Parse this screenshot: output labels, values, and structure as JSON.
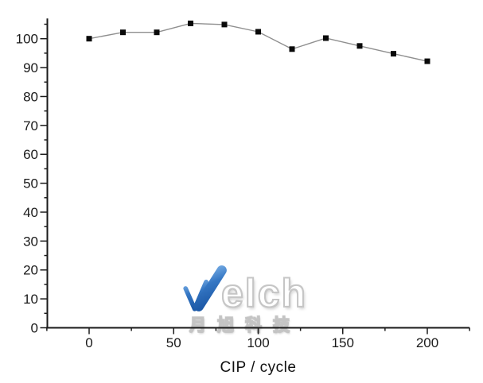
{
  "chart_data": {
    "type": "line",
    "title": "",
    "xlabel": "CIP / cycle",
    "ylabel": "",
    "x": [
      0,
      20,
      40,
      60,
      80,
      100,
      120,
      140,
      160,
      180,
      200
    ],
    "y": [
      100,
      102.2,
      102.2,
      105.3,
      104.9,
      102.4,
      96.4,
      100.2,
      97.5,
      94.8,
      92.2
    ],
    "xlim": [
      -25,
      225
    ],
    "ylim": [
      0,
      107
    ],
    "x_major_ticks": [
      0,
      50,
      100,
      150,
      200
    ],
    "x_minor_tick_step": 25,
    "y_major_tick_step": 10,
    "y_minor_tick_step": 5,
    "y_labeled_max": 100,
    "grid": false,
    "legend": "none",
    "marker": "filled-square",
    "colors": {
      "marker": "#0a0a0a",
      "line": "#8f8f8f",
      "axis": "#1a1a1a",
      "tick_label": "#1a1a1a"
    }
  },
  "watermark": {
    "brand_rest": "elch",
    "subtitle": "月旭科技",
    "accent_color_top": "#7fb3e8",
    "accent_color_bottom": "#1d5aa8"
  }
}
